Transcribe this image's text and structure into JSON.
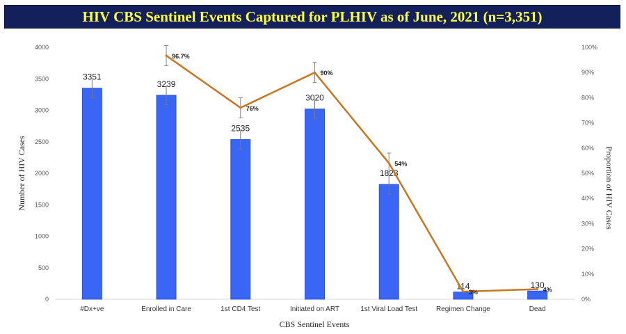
{
  "chart_data": {
    "type": "bar+line",
    "title": "HIV CBS Sentinel Events Captured for PLHIV as of June, 2021 (n=3,351)",
    "xlabel": "CBS Sentinel Events",
    "ylabel": "Number of HIV Cases",
    "y2label": "Proportion of HIV Cases",
    "ylim": [
      0,
      4000
    ],
    "y2lim": [
      0,
      100
    ],
    "yticks": [
      "0",
      "500",
      "1000",
      "1500",
      "2000",
      "2500",
      "3000",
      "3500",
      "4000"
    ],
    "y2ticks": [
      "0%",
      "10%",
      "20%",
      "30%",
      "40%",
      "50%",
      "60%",
      "70%",
      "80%",
      "90%",
      "100%"
    ],
    "categories": [
      "#Dx+ve",
      "Enrolled in Care",
      "1st CD4 Test",
      "Initiated on ART",
      "1st Viral Load Test",
      "Regimen Change",
      "Dead"
    ],
    "bars": {
      "name": "Number of HIV Cases",
      "values": [
        3351,
        3239,
        2535,
        3020,
        1823,
        114,
        130
      ],
      "labels": [
        "3351",
        "3239",
        "2535",
        "3020",
        "1823",
        "114",
        "130"
      ],
      "color": "#3a66f5",
      "error": 150
    },
    "line": {
      "name": "Proportion of HIV Cases",
      "values": [
        null,
        96.7,
        76,
        90,
        54,
        3,
        4
      ],
      "labels": [
        "",
        "96.7%",
        "76%",
        "90%",
        "54%",
        "3%",
        "4%"
      ],
      "color": "#c87620",
      "error": 4
    }
  }
}
